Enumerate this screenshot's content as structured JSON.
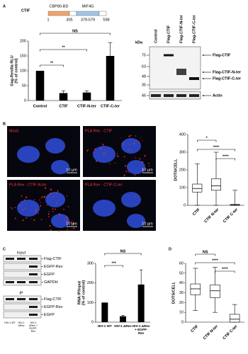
{
  "figure": {
    "panel_labels": [
      "A",
      "B",
      "C",
      "D"
    ],
    "schematic": {
      "protein": "CTIF",
      "domains": [
        "CBP80-BD",
        "MIF4G"
      ],
      "positions": [
        "1",
        "305",
        "379-579",
        "598"
      ]
    },
    "blot_a": {
      "lanes": [
        "Control",
        "Flag-CTIF",
        "Flag-CTIF-N-ter",
        "Flag-CTIF-C-ter"
      ],
      "unit": "kDa",
      "markers": [
        "75",
        "63",
        "48",
        "35",
        "45"
      ],
      "bands": [
        "Flag-CTIF",
        "Flag-CTIF-N-ter",
        "Flag-CTIF-C-ter",
        "Actin"
      ]
    },
    "microscopy": [
      {
        "label": "Mock",
        "scale": "10 µm"
      },
      {
        "label": "PLA Rev - CTIF",
        "scale": "10 µm"
      },
      {
        "label": "PLA Rev - CTIF-N-ter",
        "scale": "10 µm"
      },
      {
        "label": "PLA Rev - CTIF-C-ter",
        "scale": "10 µm"
      }
    ],
    "blot_c": {
      "sections": [
        "Input",
        "IP"
      ],
      "input_bands": [
        "Flag-CTIF",
        "EGFP-Rev",
        "EGFP",
        "GAPDH"
      ],
      "ip_bands": [
        "Flag-CTIF",
        "EGFP-Rev",
        "EGFP"
      ],
      "lanes": [
        "HIV-1 WT",
        "HIV-1 ΔRev",
        "HIV-1 ΔRev + EGFP-Rev"
      ]
    }
  },
  "chart_data": [
    {
      "type": "bar",
      "y_label": [
        "Gag-Renilla RLU",
        "(% of control)"
      ],
      "categories": [
        "Control",
        "CTIF",
        "CTIF-N-ter",
        "CTIF-C-ter"
      ],
      "values": [
        100,
        25,
        27,
        150
      ],
      "errors": [
        null,
        8,
        6,
        45
      ],
      "color": "#000000",
      "ylim": [
        0,
        200
      ],
      "yticks": [
        0,
        50,
        100,
        150,
        200
      ],
      "comparisons": [
        {
          "label": "NS",
          "groups": [
            0,
            3
          ]
        },
        {
          "label": "**",
          "groups": [
            0,
            2
          ]
        },
        {
          "label": "**",
          "groups": [
            0,
            1
          ]
        }
      ]
    },
    {
      "type": "box",
      "y_label": [
        "DOTS/CELL"
      ],
      "categories": [
        "CTIF",
        "CTIF N-ter",
        "CTIF C-ter"
      ],
      "boxes": [
        {
          "min": 0,
          "q1": 75,
          "median": 95,
          "q3": 120,
          "max": 235
        },
        {
          "min": 0,
          "q1": 85,
          "median": 110,
          "q3": 150,
          "max": 300
        },
        {
          "min": 0,
          "q1": 0,
          "median": 2,
          "q3": 5,
          "max": 85
        }
      ],
      "ylim": [
        0,
        400
      ],
      "yticks": [
        0,
        100,
        200,
        300,
        400
      ],
      "comparisons": [
        {
          "label": "*",
          "groups": [
            0,
            1
          ]
        },
        {
          "label": "****",
          "groups": [
            0,
            2
          ]
        },
        {
          "label": "****",
          "groups": [
            1,
            2
          ]
        }
      ]
    },
    {
      "type": "bar",
      "y_label": [
        "RNA IP/input",
        "(% of control)"
      ],
      "categories": [
        "HIV-1 WT",
        "HIV-1 ΔRev",
        "HIV-1 ΔRev + EGFP-Rev"
      ],
      "values": [
        100,
        30,
        192
      ],
      "errors": [
        null,
        5,
        75
      ],
      "color": "#000000",
      "ylim": [
        0,
        300
      ],
      "yticks": [
        0,
        100,
        200,
        300
      ],
      "comparisons": [
        {
          "label": "NS",
          "groups": [
            0,
            2
          ]
        },
        {
          "label": "***",
          "groups": [
            0,
            1
          ]
        }
      ]
    },
    {
      "type": "box",
      "y_label": [
        "DOTS/CELL"
      ],
      "categories": [
        "CTIF",
        "CTIF N-ter",
        "CTIF C-ter"
      ],
      "boxes": [
        {
          "min": 12,
          "q1": 28,
          "median": 34,
          "q3": 39,
          "max": 55
        },
        {
          "min": 10,
          "q1": 25,
          "median": 32,
          "q3": 38,
          "max": 56
        },
        {
          "min": 0,
          "q1": 0,
          "median": 3,
          "q3": 8,
          "max": 18
        }
      ],
      "ylim": [
        0,
        60
      ],
      "yticks": [
        0,
        10,
        20,
        30,
        40,
        50,
        60
      ],
      "comparisons": [
        {
          "label": "NS",
          "groups": [
            0,
            1
          ]
        },
        {
          "label": "****",
          "groups": [
            0,
            2
          ]
        },
        {
          "label": "****",
          "groups": [
            1,
            2
          ]
        }
      ]
    }
  ]
}
